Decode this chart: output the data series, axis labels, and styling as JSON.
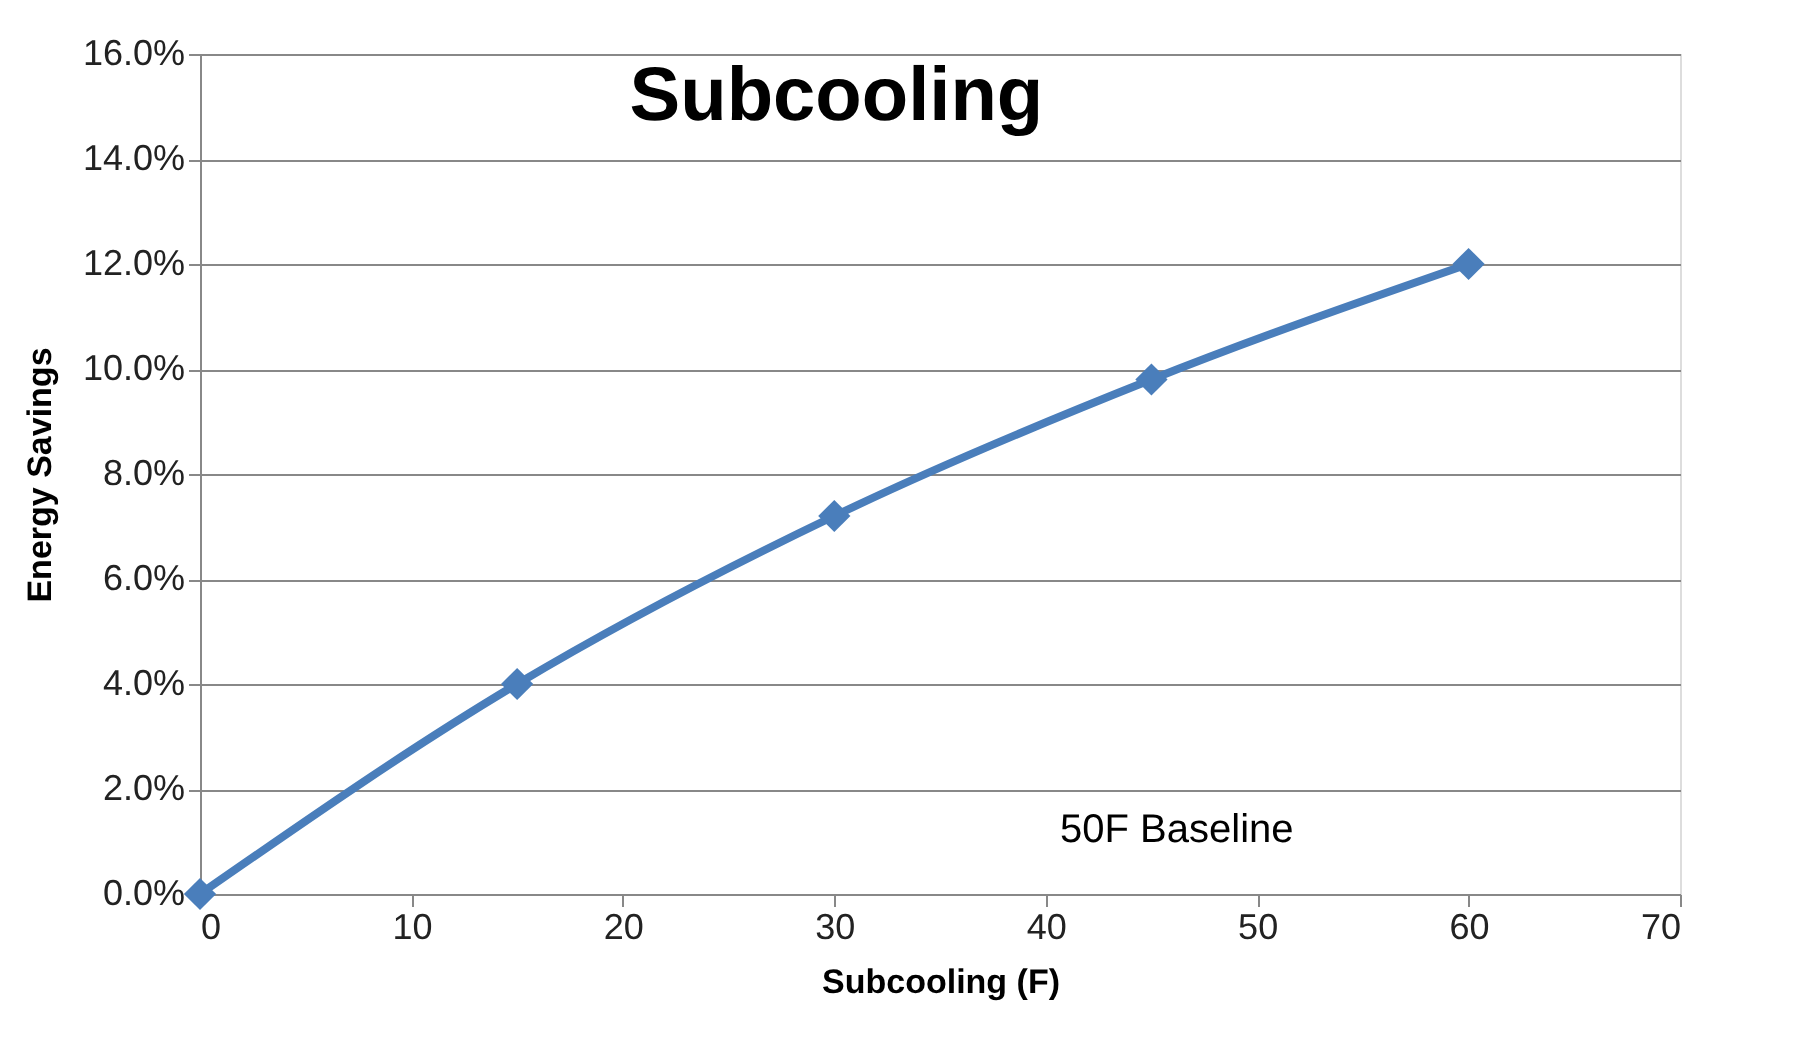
{
  "chart_data": {
    "type": "line",
    "title": "Subcooling",
    "xlabel": "Subcooling (F)",
    "ylabel": "Energy Savings",
    "x": [
      0,
      15,
      30,
      45,
      60
    ],
    "series": [
      {
        "color": "#4a7ebb",
        "values": [
          0.0,
          4.0,
          7.2,
          9.8,
          12.0
        ]
      }
    ],
    "xlim": [
      0,
      70
    ],
    "xticks": [
      0,
      10,
      20,
      30,
      40,
      50,
      60,
      70
    ],
    "ylim": [
      0,
      16
    ],
    "yticks": [
      {
        "value": 0,
        "label": "0.0%"
      },
      {
        "value": 2,
        "label": "2.0%"
      },
      {
        "value": 4,
        "label": "4.0%"
      },
      {
        "value": 6,
        "label": "6.0%"
      },
      {
        "value": 8,
        "label": "8.0%"
      },
      {
        "value": 10,
        "label": "10.0%"
      },
      {
        "value": 12,
        "label": "12.0%"
      },
      {
        "value": 14,
        "label": "14.0%"
      },
      {
        "value": 16,
        "label": "16.0%"
      }
    ],
    "annotations": [
      "50F Baseline"
    ],
    "grid": "y",
    "marker": "diamond",
    "line_style": "solid"
  }
}
